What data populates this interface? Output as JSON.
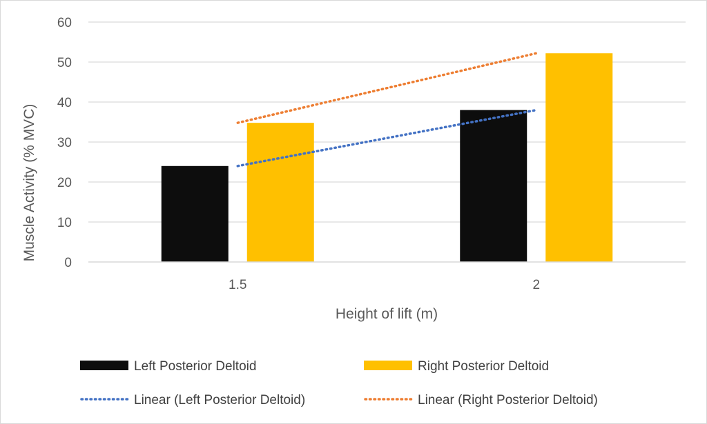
{
  "chart_data": {
    "type": "bar",
    "title": "",
    "xlabel": "Height of lift (m)",
    "ylabel": "Muscle Activity (% MVC)",
    "categories": [
      "1.5",
      "2"
    ],
    "ylim": [
      0,
      60
    ],
    "yticks": [
      0,
      10,
      20,
      30,
      40,
      50,
      60
    ],
    "grid": true,
    "legend_position": "bottom",
    "series": [
      {
        "name": "Left Posterior Deltoid",
        "values": [
          24,
          38
        ],
        "color": "#0d0d0d"
      },
      {
        "name": "Right Posterior Deltoid",
        "values": [
          34.8,
          52.2
        ],
        "color": "#ffc000"
      }
    ],
    "trendlines": [
      {
        "name": "Linear (Left Posterior Deltoid)",
        "of_series": "Left Posterior Deltoid",
        "type": "linear",
        "color": "#4472c4",
        "style": "dotted"
      },
      {
        "name": "Linear (Right Posterior Deltoid)",
        "of_series": "Right Posterior Deltoid",
        "type": "linear",
        "color": "#ed7d31",
        "style": "dotted"
      }
    ]
  }
}
